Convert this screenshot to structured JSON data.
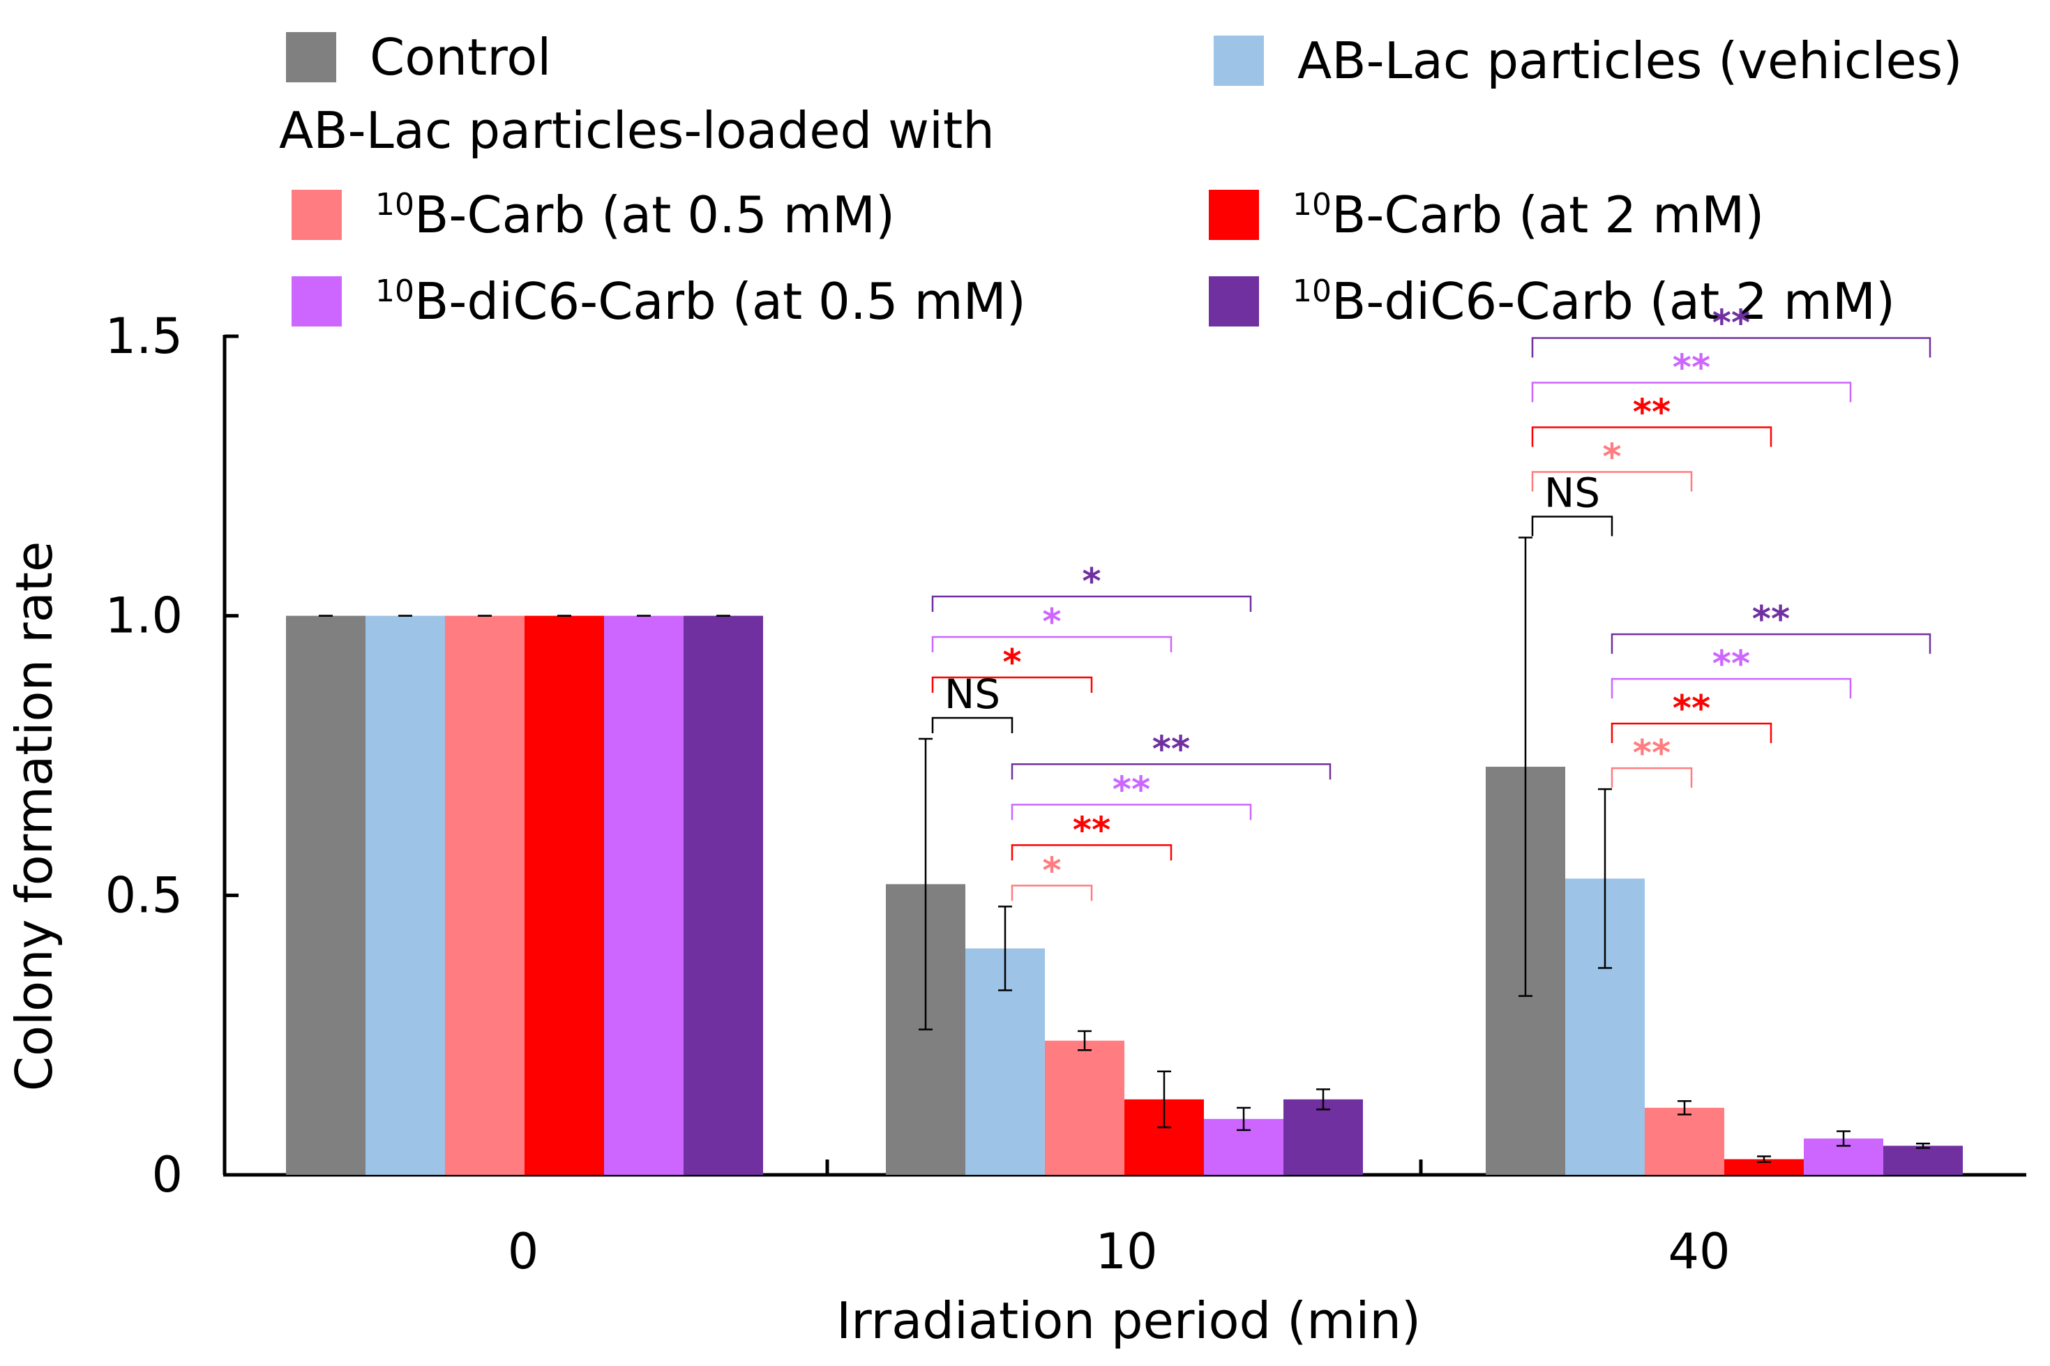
{
  "chart_data": {
    "type": "bar",
    "xlabel": "Irradiation period (min)",
    "ylabel": "Colony formation rate",
    "ylim": [
      0,
      1.5
    ],
    "yticks": [
      "0",
      "0.5",
      "1.0",
      "1.5"
    ],
    "categories": [
      "0",
      "10",
      "40"
    ],
    "legend_heading": "AB-Lac particles-loaded with",
    "legend_placement": "top",
    "series": [
      {
        "name": "Control",
        "color": "#808080",
        "values": [
          1.0,
          0.52,
          0.73
        ],
        "errors": [
          0.0,
          0.26,
          0.41
        ]
      },
      {
        "name": "AB-Lac particles (vehicles)",
        "color": "#9dc3e6",
        "values": [
          1.0,
          0.405,
          0.53
        ],
        "errors": [
          0.0,
          0.075,
          0.16
        ]
      },
      {
        "name": "10B-Carb (at 0.5 mM)",
        "sup": "10",
        "label": "B-Carb (at 0.5 mM)",
        "color": "#ff7c80",
        "values": [
          1.0,
          0.24,
          0.12
        ],
        "errors": [
          0.0,
          0.017,
          0.012
        ]
      },
      {
        "name": "10B-Carb (at 2 mM)",
        "sup": "10",
        "label": "B-Carb (at 2 mM)",
        "color": "#ff0000",
        "values": [
          1.0,
          0.135,
          0.028
        ],
        "errors": [
          0.0,
          0.05,
          0.005
        ]
      },
      {
        "name": "10B-diC6-Carb (at 0.5 mM)",
        "sup": "10",
        "label": "B-diC6-Carb (at 0.5 mM)",
        "color": "#cc66ff",
        "values": [
          1.0,
          0.1,
          0.065
        ],
        "errors": [
          0.0,
          0.02,
          0.013
        ]
      },
      {
        "name": "10B-diC6-Carb (at 2 mM)",
        "sup": "10",
        "label": "B-diC6-Carb (at 2 mM)",
        "color": "#7030a0",
        "values": [
          1.0,
          0.135,
          0.052
        ],
        "errors": [
          0.0,
          0.018,
          0.004
        ]
      }
    ],
    "significance": [
      {
        "category": "10",
        "from": 0,
        "to": 1,
        "label": "NS",
        "color": "#000000"
      },
      {
        "category": "10",
        "from": 0,
        "to": 2,
        "label": "*",
        "color": "#ff0000"
      },
      {
        "category": "10",
        "from": 0,
        "to": 3,
        "label": "*",
        "color": "#cc66ff"
      },
      {
        "category": "10",
        "from": 0,
        "to": 4,
        "label": "*",
        "color": "#7030a0"
      },
      {
        "category": "10",
        "from": 1,
        "to": 2,
        "label": "*",
        "color": "#ff7c80"
      },
      {
        "category": "10",
        "from": 1,
        "to": 3,
        "label": "**",
        "color": "#ff0000"
      },
      {
        "category": "10",
        "from": 1,
        "to": 4,
        "label": "**",
        "color": "#cc66ff"
      },
      {
        "category": "10",
        "from": 1,
        "to": 5,
        "label": "**",
        "color": "#7030a0"
      },
      {
        "category": "40",
        "from": 0,
        "to": 1,
        "label": "NS",
        "color": "#000000"
      },
      {
        "category": "40",
        "from": 0,
        "to": 2,
        "label": "*",
        "color": "#ff7c80"
      },
      {
        "category": "40",
        "from": 0,
        "to": 3,
        "label": "**",
        "color": "#ff0000"
      },
      {
        "category": "40",
        "from": 0,
        "to": 4,
        "label": "**",
        "color": "#cc66ff"
      },
      {
        "category": "40",
        "from": 0,
        "to": 5,
        "label": "**",
        "color": "#7030a0"
      },
      {
        "category": "40",
        "from": 1,
        "to": 2,
        "label": "**",
        "color": "#ff7c80"
      },
      {
        "category": "40",
        "from": 1,
        "to": 3,
        "label": "**",
        "color": "#ff0000"
      },
      {
        "category": "40",
        "from": 1,
        "to": 4,
        "label": "**",
        "color": "#cc66ff"
      },
      {
        "category": "40",
        "from": 1,
        "to": 5,
        "label": "**",
        "color": "#7030a0"
      }
    ]
  }
}
